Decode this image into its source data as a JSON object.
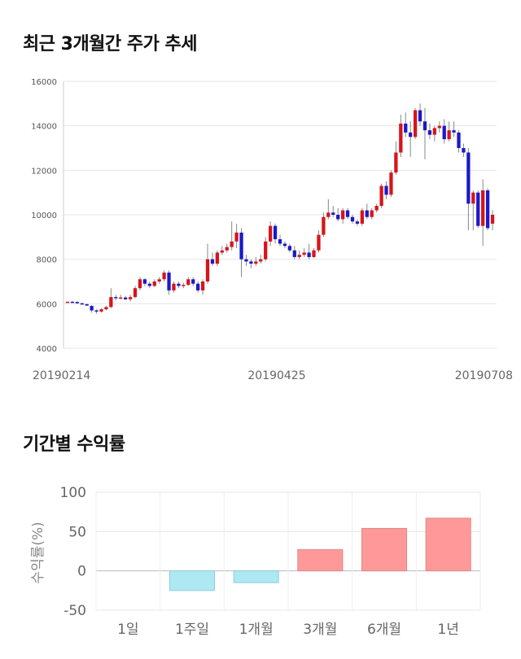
{
  "sections": {
    "price_title": "최근 3개월간 주가 추세",
    "return_title": "기간별 수익률"
  },
  "chart_data": [
    {
      "type": "candlestick",
      "title": "최근 3개월간 주가 추세",
      "ylim": [
        4000,
        16000
      ],
      "y_ticks": [
        4000,
        6000,
        8000,
        10000,
        12000,
        14000,
        16000
      ],
      "x_tick_labels": [
        "20190214",
        "20190425",
        "20190708"
      ],
      "grid": true,
      "up_color": "#d7141a",
      "down_color": "#1a1ac8",
      "series": [
        [
          6080,
          6100,
          6070,
          6090
        ],
        [
          6090,
          6120,
          6060,
          6080
        ],
        [
          6080,
          6100,
          6000,
          6020
        ],
        [
          6020,
          6050,
          5950,
          5980
        ],
        [
          5980,
          6000,
          5900,
          5920
        ],
        [
          5900,
          5950,
          5600,
          5700
        ],
        [
          5700,
          5750,
          5550,
          5650
        ],
        [
          5650,
          5800,
          5600,
          5750
        ],
        [
          5750,
          5900,
          5700,
          5850
        ],
        [
          5850,
          6700,
          5800,
          6300
        ],
        [
          6300,
          6400,
          6150,
          6250
        ],
        [
          6250,
          6400,
          6200,
          6280
        ],
        [
          6280,
          6350,
          6150,
          6200
        ],
        [
          6200,
          6400,
          6100,
          6300
        ],
        [
          6300,
          6800,
          6250,
          6700
        ],
        [
          6700,
          7200,
          6600,
          7100
        ],
        [
          7100,
          7150,
          6800,
          6900
        ],
        [
          6900,
          7000,
          6700,
          6800
        ],
        [
          6800,
          7100,
          6750,
          7000
        ],
        [
          7000,
          7200,
          6900,
          7100
        ],
        [
          7100,
          7500,
          7000,
          7400
        ],
        [
          7400,
          7500,
          6400,
          6600
        ],
        [
          6600,
          7000,
          6500,
          6900
        ],
        [
          6900,
          7000,
          6700,
          6800
        ],
        [
          6800,
          6950,
          6700,
          6850
        ],
        [
          6850,
          7200,
          6800,
          7100
        ],
        [
          7100,
          7200,
          6800,
          6900
        ],
        [
          6900,
          7000,
          6500,
          6600
        ],
        [
          6600,
          7100,
          6400,
          7000
        ],
        [
          7000,
          8700,
          6900,
          8000
        ],
        [
          8000,
          8300,
          7700,
          7800
        ],
        [
          7800,
          8400,
          7700,
          8300
        ],
        [
          8300,
          8600,
          8200,
          8400
        ],
        [
          8400,
          8700,
          8300,
          8550
        ],
        [
          8550,
          9700,
          8400,
          8800
        ],
        [
          8800,
          9600,
          8500,
          9200
        ],
        [
          9200,
          9400,
          7200,
          8000
        ],
        [
          8000,
          8200,
          7700,
          7900
        ],
        [
          7900,
          8000,
          7600,
          7800
        ],
        [
          7800,
          8100,
          7700,
          7900
        ],
        [
          7900,
          8200,
          7800,
          8000
        ],
        [
          8000,
          9000,
          7900,
          8800
        ],
        [
          8800,
          9700,
          8600,
          9500
        ],
        [
          9500,
          9600,
          8700,
          8900
        ],
        [
          8900,
          9100,
          8600,
          8700
        ],
        [
          8700,
          8800,
          8500,
          8600
        ],
        [
          8600,
          8700,
          8300,
          8400
        ],
        [
          8400,
          8600,
          8000,
          8100
        ],
        [
          8100,
          8400,
          8000,
          8200
        ],
        [
          8200,
          8500,
          8100,
          8300
        ],
        [
          8300,
          8700,
          8000,
          8100
        ],
        [
          8100,
          8500,
          8050,
          8400
        ],
        [
          8400,
          9300,
          8300,
          9100
        ],
        [
          9100,
          10100,
          9000,
          9900
        ],
        [
          9900,
          10700,
          9800,
          10100
        ],
        [
          10100,
          10400,
          9900,
          10000
        ],
        [
          10000,
          10300,
          9700,
          9800
        ],
        [
          9800,
          10300,
          9600,
          10200
        ],
        [
          10200,
          10300,
          9800,
          9900
        ],
        [
          9900,
          10000,
          9600,
          9700
        ],
        [
          9700,
          9800,
          9500,
          9600
        ],
        [
          9600,
          10300,
          9500,
          10200
        ],
        [
          10200,
          10500,
          9800,
          9900
        ],
        [
          9900,
          10300,
          9800,
          10200
        ],
        [
          10200,
          10500,
          10100,
          10400
        ],
        [
          10400,
          11400,
          10300,
          11300
        ],
        [
          11300,
          11500,
          10700,
          10900
        ],
        [
          10900,
          12000,
          10800,
          11900
        ],
        [
          11900,
          13300,
          11800,
          12800
        ],
        [
          12800,
          14500,
          12600,
          14100
        ],
        [
          14100,
          14600,
          13500,
          13700
        ],
        [
          13700,
          14200,
          12600,
          13500
        ],
        [
          13500,
          14800,
          13400,
          14700
        ],
        [
          14700,
          15000,
          14000,
          14200
        ],
        [
          14200,
          14800,
          12500,
          13800
        ],
        [
          13800,
          14100,
          13400,
          13600
        ],
        [
          13600,
          14000,
          13300,
          13900
        ],
        [
          13900,
          14200,
          13700,
          14000
        ],
        [
          14000,
          14300,
          13200,
          13400
        ],
        [
          13400,
          14200,
          13300,
          13800
        ],
        [
          13800,
          14200,
          13500,
          13700
        ],
        [
          13700,
          13800,
          12800,
          13000
        ],
        [
          13000,
          13200,
          12600,
          12800
        ],
        [
          12800,
          13000,
          9300,
          10500
        ],
        [
          10500,
          11100,
          9300,
          11000
        ],
        [
          11000,
          11100,
          9400,
          9500
        ],
        [
          9500,
          11600,
          8600,
          11100
        ],
        [
          11100,
          11200,
          9300,
          9400
        ],
        [
          9600,
          10200,
          9300,
          10000
        ]
      ]
    },
    {
      "type": "bar",
      "title": "기간별 수익률",
      "ylabel": "수익률(%)",
      "ylim": [
        -50,
        100
      ],
      "y_ticks": [
        -50,
        0,
        50,
        100
      ],
      "categories": [
        "1일",
        "1주일",
        "1개월",
        "3개월",
        "6개월",
        "1년"
      ],
      "values": [
        0,
        -25,
        -15,
        27,
        54,
        67
      ],
      "positive_color": "#ff9999",
      "negative_color": "#aee8f2",
      "grid": true
    }
  ]
}
